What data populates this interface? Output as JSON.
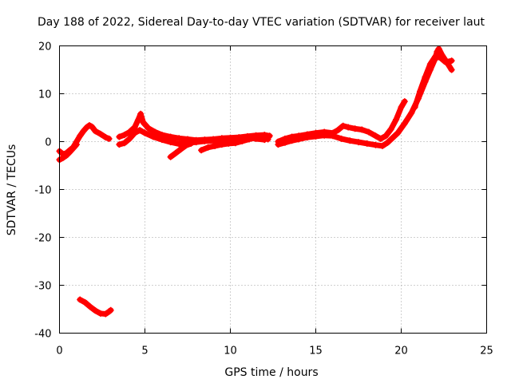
{
  "chart_data": {
    "type": "scatter",
    "title": "Day 188 of 2022, Sidereal Day-to-day VTEC variation (SDTVAR) for receiver laut",
    "xlabel": "GPS time / hours",
    "ylabel": "SDTVAR / TECUs",
    "xlim": [
      0,
      25
    ],
    "ylim": [
      -40,
      20
    ],
    "xticks": [
      0,
      5,
      10,
      15,
      20,
      25
    ],
    "yticks": [
      -40,
      -30,
      -20,
      -10,
      0,
      10,
      20
    ],
    "grid": true,
    "marker": "plus",
    "color": "#ff0000",
    "series": [
      {
        "name": "segment-1",
        "points": [
          [
            0.0,
            -2.0
          ],
          [
            0.2,
            -2.6
          ],
          [
            0.4,
            -2.4
          ],
          [
            0.6,
            -1.8
          ],
          [
            0.8,
            -1.2
          ],
          [
            1.0,
            0.0
          ],
          [
            1.2,
            1.2
          ],
          [
            1.4,
            2.2
          ],
          [
            1.6,
            3.0
          ],
          [
            1.75,
            3.4
          ],
          [
            1.9,
            3.1
          ],
          [
            2.1,
            2.2
          ],
          [
            2.4,
            1.6
          ],
          [
            2.7,
            0.9
          ],
          [
            2.9,
            0.6
          ]
        ]
      },
      {
        "name": "segment-2",
        "points": [
          [
            0.0,
            -3.8
          ],
          [
            0.2,
            -3.4
          ],
          [
            0.4,
            -2.9
          ],
          [
            0.6,
            -2.2
          ],
          [
            0.8,
            -1.4
          ],
          [
            1.0,
            -0.6
          ]
        ]
      },
      {
        "name": "segment-3",
        "points": [
          [
            3.5,
            1.0
          ],
          [
            3.8,
            1.4
          ],
          [
            4.1,
            2.0
          ],
          [
            4.4,
            3.0
          ],
          [
            4.6,
            4.5
          ],
          [
            4.75,
            5.8
          ],
          [
            4.9,
            4.0
          ],
          [
            5.2,
            2.8
          ],
          [
            5.6,
            2.0
          ],
          [
            6.0,
            1.4
          ],
          [
            6.5,
            1.0
          ],
          [
            7.0,
            0.7
          ],
          [
            7.5,
            0.5
          ],
          [
            8.0,
            0.3
          ],
          [
            8.5,
            0.4
          ],
          [
            9.0,
            0.5
          ],
          [
            9.5,
            0.7
          ],
          [
            10.0,
            0.8
          ],
          [
            10.5,
            0.9
          ],
          [
            11.0,
            1.1
          ],
          [
            11.5,
            1.3
          ],
          [
            12.0,
            1.4
          ],
          [
            12.3,
            1.2
          ]
        ]
      },
      {
        "name": "segment-4",
        "points": [
          [
            3.5,
            -0.6
          ],
          [
            3.8,
            -0.3
          ],
          [
            4.1,
            0.6
          ],
          [
            4.4,
            1.8
          ],
          [
            4.7,
            2.4
          ],
          [
            5.0,
            1.8
          ],
          [
            5.5,
            1.0
          ],
          [
            6.0,
            0.4
          ],
          [
            6.5,
            -0.1
          ],
          [
            7.0,
            -0.5
          ],
          [
            7.5,
            -0.3
          ],
          [
            8.0,
            -0.1
          ],
          [
            8.5,
            0.1
          ],
          [
            9.0,
            0.2
          ],
          [
            9.5,
            0.4
          ],
          [
            10.0,
            0.3
          ],
          [
            10.5,
            0.5
          ],
          [
            11.0,
            0.8
          ],
          [
            11.5,
            0.6
          ],
          [
            12.0,
            0.4
          ]
        ]
      },
      {
        "name": "segment-5",
        "points": [
          [
            6.5,
            -3.2
          ],
          [
            6.8,
            -2.4
          ],
          [
            7.1,
            -1.6
          ],
          [
            7.4,
            -0.8
          ],
          [
            7.7,
            -0.4
          ]
        ]
      },
      {
        "name": "segment-6",
        "points": [
          [
            8.3,
            -1.8
          ],
          [
            8.7,
            -1.2
          ],
          [
            9.1,
            -0.9
          ],
          [
            9.5,
            -0.6
          ],
          [
            9.9,
            -0.4
          ],
          [
            10.3,
            -0.3
          ],
          [
            10.7,
            0.1
          ],
          [
            11.1,
            0.5
          ],
          [
            11.5,
            0.8
          ],
          [
            11.9,
            0.9
          ],
          [
            12.2,
            0.5
          ]
        ]
      },
      {
        "name": "segment-7",
        "points": [
          [
            12.8,
            0.0
          ],
          [
            13.2,
            0.6
          ],
          [
            13.6,
            1.0
          ],
          [
            14.0,
            1.2
          ],
          [
            14.5,
            1.5
          ],
          [
            15.0,
            1.8
          ],
          [
            15.5,
            2.0
          ],
          [
            16.0,
            1.8
          ],
          [
            16.3,
            2.4
          ],
          [
            16.6,
            3.3
          ],
          [
            16.9,
            3.0
          ],
          [
            17.3,
            2.7
          ],
          [
            17.7,
            2.5
          ],
          [
            18.1,
            2.0
          ],
          [
            18.5,
            1.2
          ],
          [
            18.8,
            0.6
          ],
          [
            19.1,
            1.2
          ],
          [
            19.4,
            2.6
          ],
          [
            19.7,
            4.6
          ],
          [
            20.0,
            7.2
          ],
          [
            20.2,
            8.4
          ]
        ]
      },
      {
        "name": "segment-8",
        "points": [
          [
            12.8,
            -0.6
          ],
          [
            13.2,
            -0.2
          ],
          [
            13.6,
            0.2
          ],
          [
            14.0,
            0.5
          ],
          [
            14.5,
            0.9
          ],
          [
            15.0,
            1.1
          ],
          [
            15.5,
            1.3
          ],
          [
            16.0,
            1.2
          ],
          [
            16.5,
            0.6
          ],
          [
            17.0,
            0.2
          ],
          [
            17.5,
            -0.1
          ],
          [
            18.0,
            -0.4
          ],
          [
            18.5,
            -0.7
          ],
          [
            18.9,
            -0.9
          ],
          [
            19.2,
            -0.2
          ],
          [
            19.5,
            0.8
          ],
          [
            19.8,
            1.8
          ],
          [
            20.2,
            3.8
          ],
          [
            20.6,
            6.0
          ],
          [
            21.0,
            9.0
          ],
          [
            21.4,
            12.5
          ],
          [
            21.7,
            15.0
          ],
          [
            21.95,
            17.0
          ],
          [
            22.1,
            18.8
          ],
          [
            22.2,
            19.4
          ],
          [
            22.4,
            18.0
          ],
          [
            22.7,
            16.4
          ],
          [
            22.95,
            15.0
          ]
        ]
      },
      {
        "name": "segment-9",
        "points": [
          [
            20.8,
            7.2
          ],
          [
            21.1,
            10.5
          ],
          [
            21.4,
            13.5
          ],
          [
            21.7,
            16.2
          ],
          [
            22.0,
            17.8
          ],
          [
            22.3,
            17.5
          ],
          [
            22.6,
            16.6
          ],
          [
            22.95,
            16.9
          ]
        ]
      },
      {
        "name": "segment-10",
        "points": [
          [
            1.2,
            -33.0
          ],
          [
            1.5,
            -33.6
          ],
          [
            1.8,
            -34.5
          ],
          [
            2.1,
            -35.3
          ],
          [
            2.4,
            -35.9
          ],
          [
            2.7,
            -36.0
          ],
          [
            2.9,
            -35.5
          ],
          [
            3.0,
            -35.2
          ]
        ]
      }
    ]
  }
}
